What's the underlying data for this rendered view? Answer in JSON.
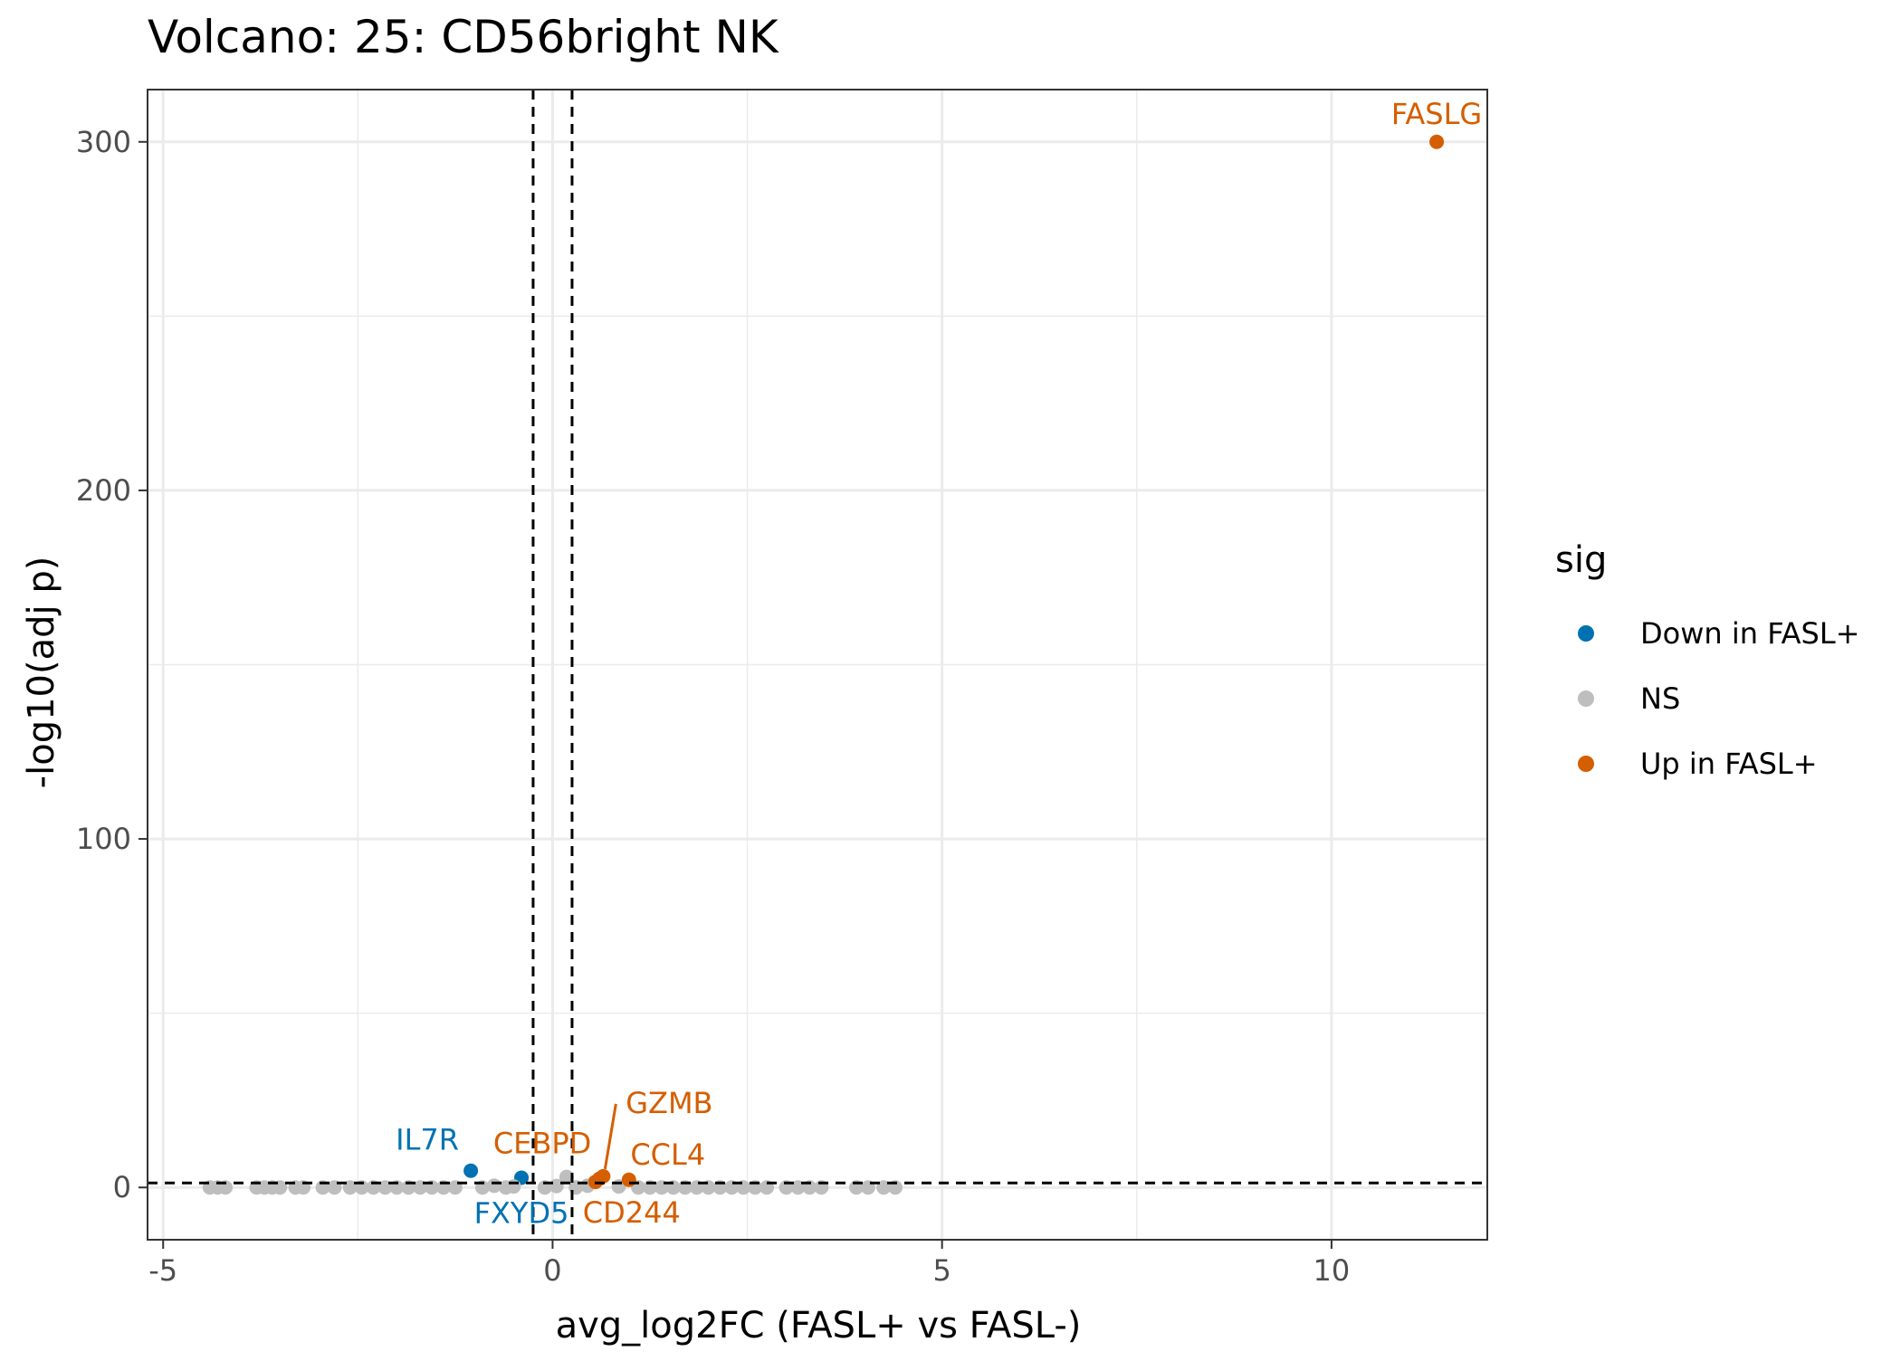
{
  "chart_data": {
    "type": "scatter",
    "title": "Volcano: 25: CD56bright NK",
    "xlabel": "avg_log2FC (FASL+ vs FASL-)",
    "ylabel": "-log10(adj p)",
    "xlim": [
      -5.2,
      12
    ],
    "ylim": [
      -15,
      315
    ],
    "xticks": [
      -5,
      0,
      5,
      10
    ],
    "yticks": [
      0,
      100,
      200,
      300
    ],
    "grid": true,
    "thresholds": {
      "vlines": [
        -0.25,
        0.25
      ],
      "hline": 1.3
    },
    "legend": {
      "title": "sig",
      "position": "right",
      "entries": [
        {
          "label": "Down in FASL+",
          "color": "#0072B2"
        },
        {
          "label": "NS",
          "color": "#BEBEBE"
        },
        {
          "label": "Up in FASL+",
          "color": "#D55E00"
        }
      ]
    },
    "series": [
      {
        "name": "Down in FASL+",
        "color": "#0072B2",
        "points": [
          {
            "x": -1.05,
            "y": 4.8,
            "label": "IL7R"
          },
          {
            "x": -0.4,
            "y": 2.8,
            "label": "FXYD5"
          }
        ]
      },
      {
        "name": "NS",
        "color": "#BEBEBE",
        "points": [
          {
            "x": -4.4,
            "y": 0
          },
          {
            "x": -4.3,
            "y": 0
          },
          {
            "x": -4.2,
            "y": 0
          },
          {
            "x": -3.8,
            "y": 0
          },
          {
            "x": -3.7,
            "y": 0
          },
          {
            "x": -3.6,
            "y": 0
          },
          {
            "x": -3.5,
            "y": 0
          },
          {
            "x": -3.3,
            "y": 0
          },
          {
            "x": -3.2,
            "y": 0
          },
          {
            "x": -2.95,
            "y": 0
          },
          {
            "x": -2.8,
            "y": 0
          },
          {
            "x": -2.6,
            "y": 0
          },
          {
            "x": -2.45,
            "y": 0
          },
          {
            "x": -2.3,
            "y": 0
          },
          {
            "x": -2.15,
            "y": 0
          },
          {
            "x": -2.0,
            "y": 0
          },
          {
            "x": -1.85,
            "y": 0
          },
          {
            "x": -1.7,
            "y": 0
          },
          {
            "x": -1.55,
            "y": 0
          },
          {
            "x": -1.4,
            "y": 0
          },
          {
            "x": -1.25,
            "y": 0
          },
          {
            "x": -0.9,
            "y": 0
          },
          {
            "x": -0.75,
            "y": 0.5
          },
          {
            "x": -0.6,
            "y": 0
          },
          {
            "x": -0.5,
            "y": 0.3
          },
          {
            "x": -0.1,
            "y": 0
          },
          {
            "x": 0.05,
            "y": 0.4
          },
          {
            "x": 0.18,
            "y": 3.0
          },
          {
            "x": 0.3,
            "y": 0
          },
          {
            "x": 0.45,
            "y": 0.5
          },
          {
            "x": 0.85,
            "y": 0.3
          },
          {
            "x": 1.1,
            "y": 0
          },
          {
            "x": 1.25,
            "y": 0
          },
          {
            "x": 1.4,
            "y": 0
          },
          {
            "x": 1.55,
            "y": 0
          },
          {
            "x": 1.7,
            "y": 0
          },
          {
            "x": 1.85,
            "y": 0
          },
          {
            "x": 2.0,
            "y": 0
          },
          {
            "x": 2.15,
            "y": 0
          },
          {
            "x": 2.3,
            "y": 0
          },
          {
            "x": 2.45,
            "y": 0
          },
          {
            "x": 2.6,
            "y": 0
          },
          {
            "x": 2.75,
            "y": 0
          },
          {
            "x": 3.0,
            "y": 0
          },
          {
            "x": 3.15,
            "y": 0
          },
          {
            "x": 3.3,
            "y": 0
          },
          {
            "x": 3.45,
            "y": 0
          },
          {
            "x": 3.9,
            "y": 0
          },
          {
            "x": 4.05,
            "y": 0
          },
          {
            "x": 4.25,
            "y": 0
          },
          {
            "x": 4.4,
            "y": 0
          }
        ]
      },
      {
        "name": "Up in FASL+",
        "color": "#D55E00",
        "points": [
          {
            "x": 11.35,
            "y": 300,
            "label": "FASLG"
          },
          {
            "x": 0.65,
            "y": 3.2,
            "label": "GZMB"
          },
          {
            "x": 0.6,
            "y": 2.5,
            "label": "CEBPD"
          },
          {
            "x": 0.98,
            "y": 2.2,
            "label": "CCL4"
          },
          {
            "x": 0.55,
            "y": 1.6,
            "label": "CD244"
          }
        ]
      }
    ]
  }
}
